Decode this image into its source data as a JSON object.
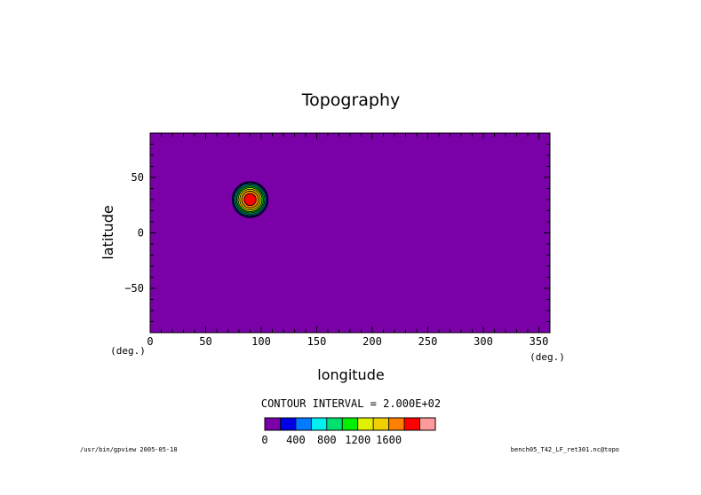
{
  "chart_data": {
    "type": "heatmap",
    "title": "Topography",
    "xlabel": "longitude",
    "ylabel": "latitude",
    "x_unit": "(deg.)",
    "y_unit": "(deg.)",
    "xlim": [
      0,
      360
    ],
    "ylim": [
      -90,
      90
    ],
    "x_ticks": [
      0,
      50,
      100,
      150,
      200,
      250,
      300,
      350
    ],
    "y_ticks": [
      -50,
      0,
      50
    ],
    "grid": false,
    "field": {
      "description": "single circular mountain, elsewhere 0",
      "center_lon": 90,
      "center_lat": 30,
      "peak_value": 2000,
      "base_radius_deg": 17
    },
    "contour_interval_text": "CONTOUR INTERVAL = 2.000E+02",
    "contour_interval": 200,
    "colorbar": {
      "levels": [
        0,
        200,
        400,
        600,
        800,
        1000,
        1200,
        1400,
        1600,
        1800,
        2000
      ],
      "colors": [
        "#7a00a8",
        "#0000e6",
        "#007aff",
        "#00f0f0",
        "#00e070",
        "#00f000",
        "#e0f000",
        "#f0d000",
        "#ff8000",
        "#ff0000",
        "#ff9a9a"
      ],
      "tick_labels": [
        "0",
        "400",
        "800",
        "1200",
        "1600"
      ],
      "tick_values": [
        0,
        400,
        800,
        1200,
        1600
      ]
    }
  },
  "footer": {
    "left": "/usr/bin/gpview  2005-05-18",
    "right": "bench05_T42_LF_ret301.nc@topo"
  }
}
